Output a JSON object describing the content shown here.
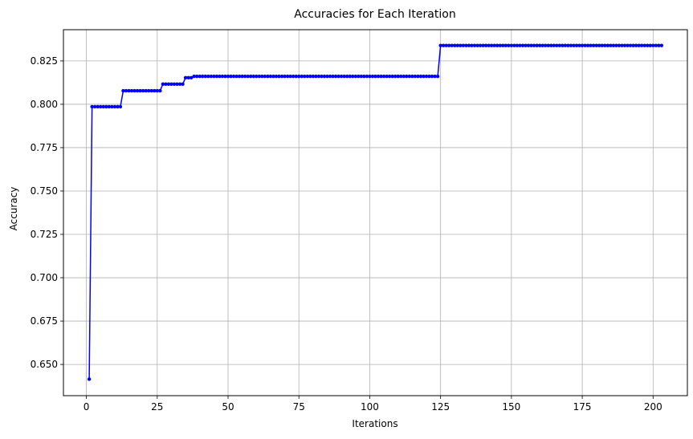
{
  "chart_data": {
    "type": "line",
    "title": "Accuracies for Each Iteration",
    "xlabel": "Iterations",
    "ylabel": "Accuracy",
    "xlim": [
      -8.1,
      212.1
    ],
    "ylim": [
      0.632,
      0.843
    ],
    "xticks": [
      0,
      25,
      50,
      75,
      100,
      125,
      150,
      175,
      200
    ],
    "yticks": [
      0.65,
      0.675,
      0.7,
      0.725,
      0.75,
      0.775,
      0.8,
      0.825
    ],
    "ytick_labels": [
      "0.650",
      "0.675",
      "0.700",
      "0.725",
      "0.750",
      "0.775",
      "0.800",
      "0.825"
    ],
    "grid": true,
    "line_color": "#0000ff",
    "marker": "circle",
    "series": [
      {
        "segments": [
          {
            "from": 1,
            "to": 1,
            "value": 0.6415
          },
          {
            "from": 2,
            "to": 12,
            "value": 0.7986
          },
          {
            "from": 13,
            "to": 26,
            "value": 0.8078
          },
          {
            "from": 27,
            "to": 34,
            "value": 0.8116
          },
          {
            "from": 35,
            "to": 37,
            "value": 0.8153
          },
          {
            "from": 38,
            "to": 124,
            "value": 0.8161
          },
          {
            "from": 125,
            "to": 203,
            "value": 0.8339
          }
        ]
      }
    ]
  }
}
